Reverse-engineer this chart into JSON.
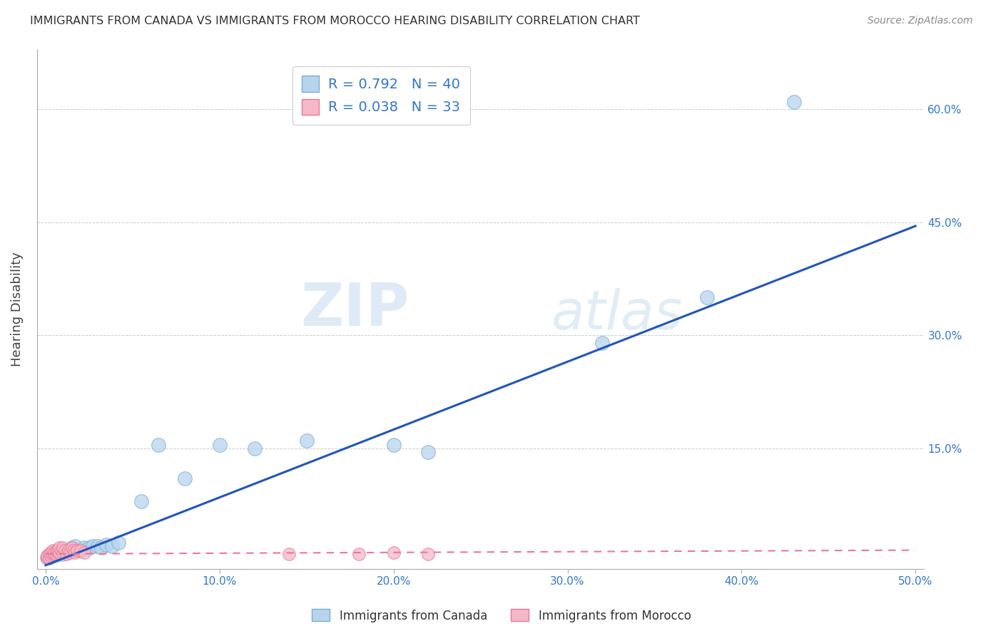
{
  "title": "IMMIGRANTS FROM CANADA VS IMMIGRANTS FROM MOROCCO HEARING DISABILITY CORRELATION CHART",
  "source": "Source: ZipAtlas.com",
  "ylabel": "Hearing Disability",
  "xlim": [
    -0.005,
    0.505
  ],
  "ylim": [
    -0.01,
    0.68
  ],
  "xticks": [
    0.0,
    0.1,
    0.2,
    0.3,
    0.4,
    0.5
  ],
  "yticks": [
    0.0,
    0.15,
    0.3,
    0.45,
    0.6
  ],
  "xtick_labels": [
    "0.0%",
    "10.0%",
    "20.0%",
    "30.0%",
    "40.0%",
    "50.0%"
  ],
  "ytick_labels": [
    "",
    "15.0%",
    "30.0%",
    "45.0%",
    "60.0%"
  ],
  "canada_color": "#b8d4ed",
  "morocco_color": "#f5b8c8",
  "canada_edge_color": "#7aadd4",
  "morocco_edge_color": "#e87898",
  "trend_canada_color": "#2255bb",
  "trend_morocco_color": "#e87898",
  "canada_R": 0.792,
  "canada_N": 40,
  "morocco_R": 0.038,
  "morocco_N": 33,
  "watermark_zip": "ZIP",
  "watermark_atlas": "atlas",
  "canada_x": [
    0.001,
    0.002,
    0.002,
    0.003,
    0.003,
    0.004,
    0.004,
    0.005,
    0.005,
    0.006,
    0.007,
    0.008,
    0.009,
    0.01,
    0.011,
    0.012,
    0.013,
    0.015,
    0.016,
    0.017,
    0.02,
    0.022,
    0.025,
    0.027,
    0.03,
    0.032,
    0.035,
    0.038,
    0.042,
    0.055,
    0.065,
    0.08,
    0.1,
    0.12,
    0.15,
    0.2,
    0.22,
    0.32,
    0.38,
    0.43
  ],
  "canada_y": [
    0.005,
    0.005,
    0.008,
    0.01,
    0.007,
    0.01,
    0.012,
    0.008,
    0.012,
    0.01,
    0.01,
    0.012,
    0.015,
    0.01,
    0.015,
    0.012,
    0.015,
    0.018,
    0.016,
    0.02,
    0.015,
    0.018,
    0.018,
    0.02,
    0.02,
    0.018,
    0.022,
    0.02,
    0.025,
    0.08,
    0.155,
    0.11,
    0.155,
    0.15,
    0.16,
    0.155,
    0.145,
    0.29,
    0.35,
    0.61
  ],
  "morocco_x": [
    0.001,
    0.001,
    0.002,
    0.002,
    0.003,
    0.003,
    0.004,
    0.004,
    0.005,
    0.005,
    0.006,
    0.006,
    0.007,
    0.007,
    0.008,
    0.008,
    0.009,
    0.01,
    0.01,
    0.011,
    0.012,
    0.013,
    0.014,
    0.015,
    0.016,
    0.017,
    0.018,
    0.02,
    0.022,
    0.14,
    0.18,
    0.2,
    0.22
  ],
  "morocco_y": [
    0.005,
    0.008,
    0.005,
    0.01,
    0.008,
    0.012,
    0.01,
    0.015,
    0.01,
    0.012,
    0.01,
    0.015,
    0.012,
    0.015,
    0.012,
    0.018,
    0.015,
    0.012,
    0.018,
    0.015,
    0.01,
    0.015,
    0.012,
    0.018,
    0.015,
    0.012,
    0.015,
    0.015,
    0.012,
    0.01,
    0.01,
    0.012,
    0.01
  ],
  "trend_canada_x0": 0.0,
  "trend_canada_y0": -0.005,
  "trend_canada_x1": 0.5,
  "trend_canada_y1": 0.445,
  "trend_morocco_x0": 0.0,
  "trend_morocco_y0": 0.01,
  "trend_morocco_x1": 0.5,
  "trend_morocco_y1": 0.015
}
